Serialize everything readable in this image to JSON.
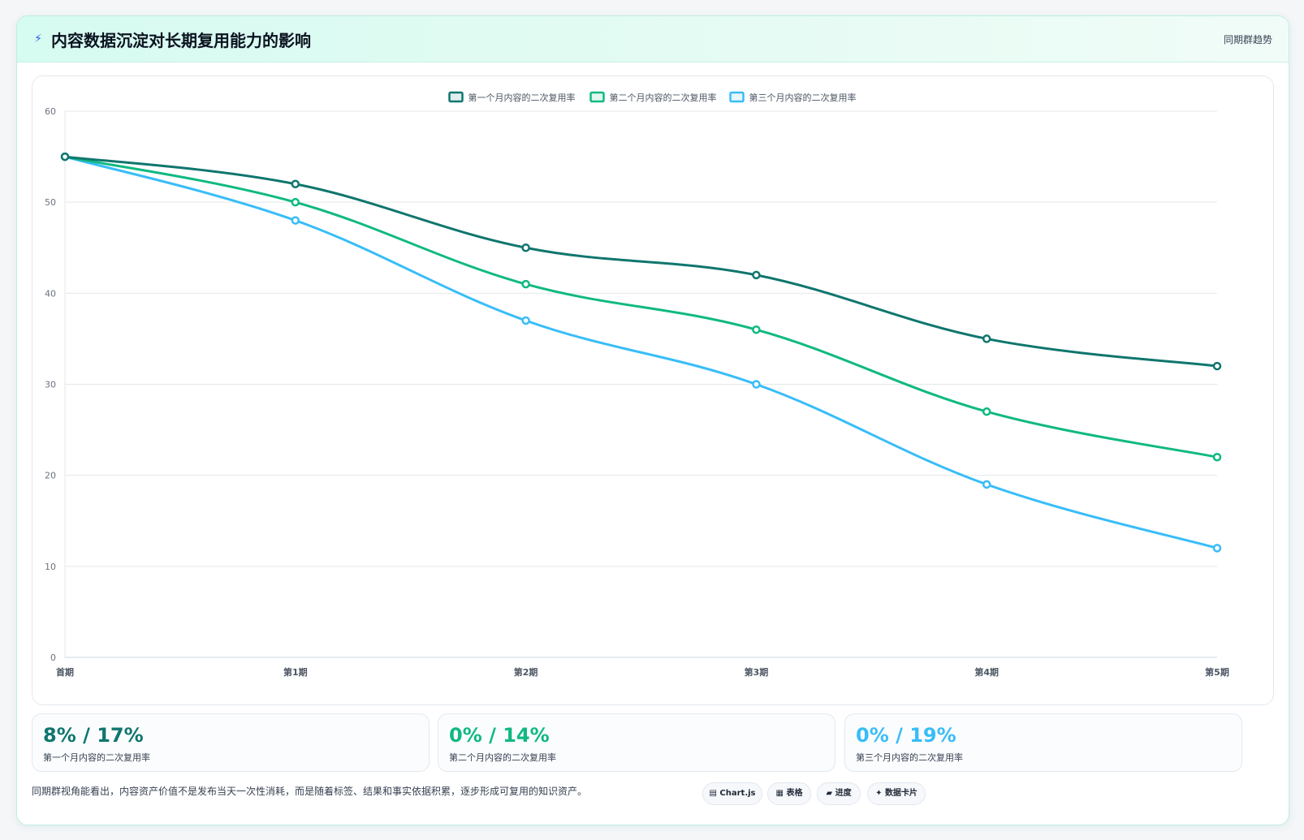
{
  "header": {
    "icon": "bolt-icon",
    "title": "内容数据沉淀对长期复用能力的影响",
    "tag": "同期群趋势"
  },
  "chart_data": {
    "type": "line",
    "categories": [
      "首期",
      "第1期",
      "第2期",
      "第3期",
      "第4期",
      "第5期"
    ],
    "series": [
      {
        "name": "第一个月内容的二次复用率",
        "color": "#0f766e",
        "values": [
          55,
          52,
          45,
          42,
          35,
          32
        ]
      },
      {
        "name": "第二个月内容的二次复用率",
        "color": "#10b981",
        "values": [
          55,
          50,
          41,
          36,
          27,
          22
        ]
      },
      {
        "name": "第三个月内容的二次复用率",
        "color": "#38bdf8",
        "values": [
          55,
          48,
          37,
          30,
          19,
          12
        ]
      }
    ],
    "ylim": [
      0,
      60
    ],
    "yticks": [
      0,
      10,
      20,
      30,
      40,
      50,
      60
    ],
    "legend": "top-center",
    "grid": true
  },
  "stats": [
    {
      "value": "8% / 17%",
      "label": "第一个月内容的二次复用率",
      "color": "#0f766e"
    },
    {
      "value": "0% / 14%",
      "label": "第二个月内容的二次复用率",
      "color": "#10b981"
    },
    {
      "value": "0% / 19%",
      "label": "第三个月内容的二次复用率",
      "color": "#38bdf8"
    }
  ],
  "footer": {
    "note": "同期群视角能看出，内容资产价值不是发布当天一次性消耗，而是随着标签、结果和事实依据积累，逐步形成可复用的知识资产。",
    "chips": [
      {
        "icon": "chart-icon",
        "glyph": "▤",
        "label": "Chart.js"
      },
      {
        "icon": "table-icon",
        "glyph": "▦",
        "label": "表格"
      },
      {
        "icon": "progress-icon",
        "glyph": "▰",
        "label": "进度"
      },
      {
        "icon": "sparkle-icon",
        "glyph": "✦",
        "label": "数据卡片"
      }
    ]
  }
}
